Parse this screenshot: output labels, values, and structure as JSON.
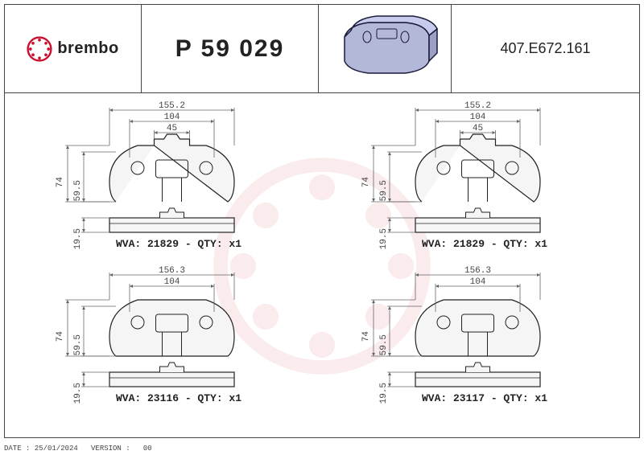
{
  "header": {
    "brand": "brembo",
    "part_number": "P 59 029",
    "code": "407.E672.161",
    "logo_color": "#c8102e"
  },
  "watermark_color": "#c8102e",
  "pads": [
    {
      "dims": {
        "w_outer": "155.2",
        "w_mid": "104",
        "w_inner": "45",
        "h": "74",
        "h_inner": "59.5",
        "thick": "19.5"
      },
      "wva": "WVA: 21829 - QTY: x1",
      "outer_w_val": 155.2,
      "inner_w_val": 104,
      "center_w_val": 45,
      "show_center_dim": true,
      "bottom_w": 156
    },
    {
      "dims": {
        "w_outer": "155.2",
        "w_mid": "104",
        "w_inner": "45",
        "h": "74",
        "h_inner": "59.5",
        "thick": "19.5"
      },
      "wva": "WVA: 21829 - QTY: x1",
      "outer_w_val": 155.2,
      "inner_w_val": 104,
      "center_w_val": 45,
      "show_center_dim": true,
      "bottom_w": 156
    },
    {
      "dims": {
        "w_outer": "156.3",
        "w_mid": "104",
        "h": "74",
        "h_inner": "59.5",
        "thick": "19.5"
      },
      "wva": "WVA: 23116 - QTY: x1",
      "outer_w_val": 156.3,
      "inner_w_val": 104,
      "show_center_dim": false,
      "bottom_w": 157
    },
    {
      "dims": {
        "w_outer": "156.3",
        "w_mid": "104",
        "h": "74",
        "h_inner": "59.5",
        "thick": "19.5"
      },
      "wva": "WVA: 23117 - QTY: x1",
      "outer_w_val": 156.3,
      "inner_w_val": 104,
      "show_center_dim": false,
      "bottom_w": 157
    }
  ],
  "footer": {
    "date_label": "DATE :",
    "date": "25/01/2024",
    "version_label": "VERSION :",
    "version": "00"
  },
  "pad3d": {
    "fill": "#b4b8d8",
    "stroke": "#1a1a3a"
  }
}
